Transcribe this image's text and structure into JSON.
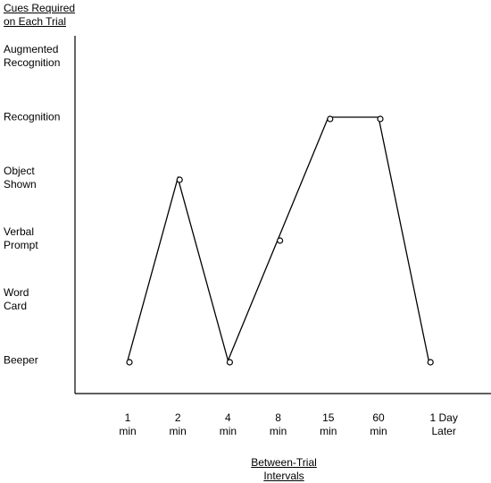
{
  "chart_data": {
    "type": "line",
    "y_label": "Cues Required\non Each Trial",
    "x_label": "Between-Trial\nIntervals",
    "categories": [
      "1\nmin",
      "2\nmin",
      "4\nmin",
      "8\nmin",
      "15\nmin",
      "60\nmin",
      "1 Day Later"
    ],
    "values": [
      0,
      3,
      0,
      2,
      4,
      4,
      0
    ],
    "color": "#000000",
    "ylim": [
      0,
      5
    ],
    "yticks": [
      {
        "value": 0,
        "label": "Beeper"
      },
      {
        "value": 1,
        "label": "Word\nCard"
      },
      {
        "value": 2,
        "label": "Verbal\nPrompt"
      },
      {
        "value": 3,
        "label": "Object\nShown"
      },
      {
        "value": 4,
        "label": "Recognition"
      },
      {
        "value": 5,
        "label": "Augmented\nRecognition"
      }
    ],
    "grid": false
  }
}
